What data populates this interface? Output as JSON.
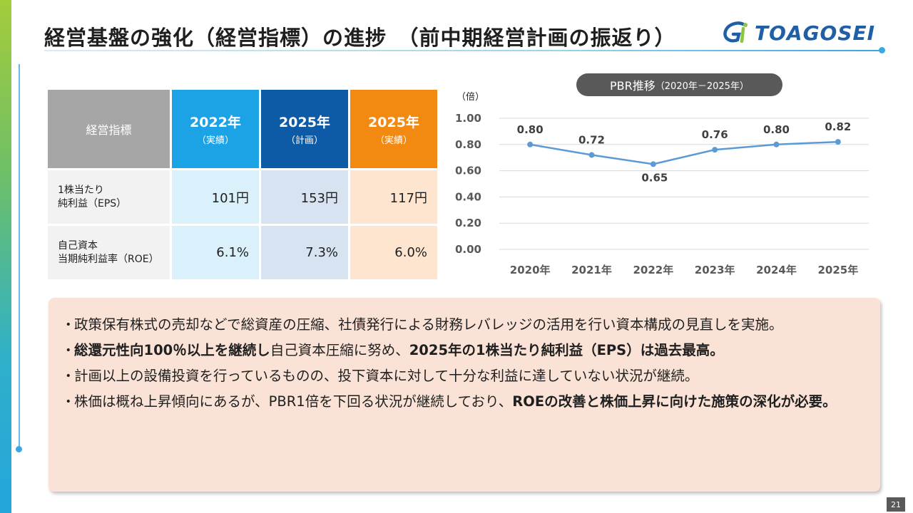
{
  "page": {
    "title": "経営基盤の強化（経営指標）の進捗　（前中期経営計画の振返り）",
    "logo_text": "TOAGOSEI",
    "page_number": "21"
  },
  "colors": {
    "header_2022": "#1ba3e6",
    "header_2025_plan": "#0d5aa7",
    "header_2025_actual": "#f28a12",
    "line": "#5b9bd5",
    "summary_bg": "#fae3d6"
  },
  "kpi_table": {
    "header_label": "経営指標",
    "columns": [
      {
        "year": "2022年",
        "sub": "（実績）"
      },
      {
        "year": "2025年",
        "sub": "（計画）"
      },
      {
        "year": "2025年",
        "sub": "（実績）"
      }
    ],
    "rows": [
      {
        "label_line1": "1株当たり",
        "label_line2": "純利益（EPS）",
        "values": [
          "101円",
          "153円",
          "117円"
        ]
      },
      {
        "label_line1": "自己資本",
        "label_line2": "当期純利益率（ROE）",
        "values": [
          "6.1%",
          "7.3%",
          "6.0%"
        ]
      }
    ]
  },
  "pbr_title": {
    "main": "PBR推移",
    "range": "（2020年－2025年）"
  },
  "chart_data": {
    "type": "line",
    "title": "PBR推移（2020年－2025年）",
    "unit_label": "（倍）",
    "categories": [
      "2020年",
      "2021年",
      "2022年",
      "2023年",
      "2024年",
      "2025年"
    ],
    "series": [
      {
        "name": "PBR",
        "values": [
          0.8,
          0.72,
          0.65,
          0.76,
          0.8,
          0.82
        ]
      }
    ],
    "data_labels": [
      "0.80",
      "0.72",
      "0.65",
      "0.76",
      "0.80",
      "0.82"
    ],
    "y_ticks": [
      "0.00",
      "0.20",
      "0.40",
      "0.60",
      "0.80",
      "1.00"
    ],
    "ylim": [
      0,
      1.0
    ],
    "grid": true
  },
  "summary": {
    "bullet_char": "・",
    "b1": "政策保有株式の売却などで総資産の圧縮、社債発行による財務レバレッジの活用を行い資本構成の見直しを実施。",
    "b2_bold1": "総還元性向100％以上を継続し",
    "b2_normal": "自己資本圧縮に努め、",
    "b2_bold2": "2025年の1株当たり純利益（EPS）は過去最高。",
    "b3": "計画以上の設備投資を行っているものの、投下資本に対して十分な利益に達していない状況が継続。",
    "b4_normal": "株価は概ね上昇傾向にあるが、PBR1倍を下回る状況が継続しており、",
    "b4_bold": "ROEの改善と株価上昇に向けた施策の深化が必要。"
  }
}
